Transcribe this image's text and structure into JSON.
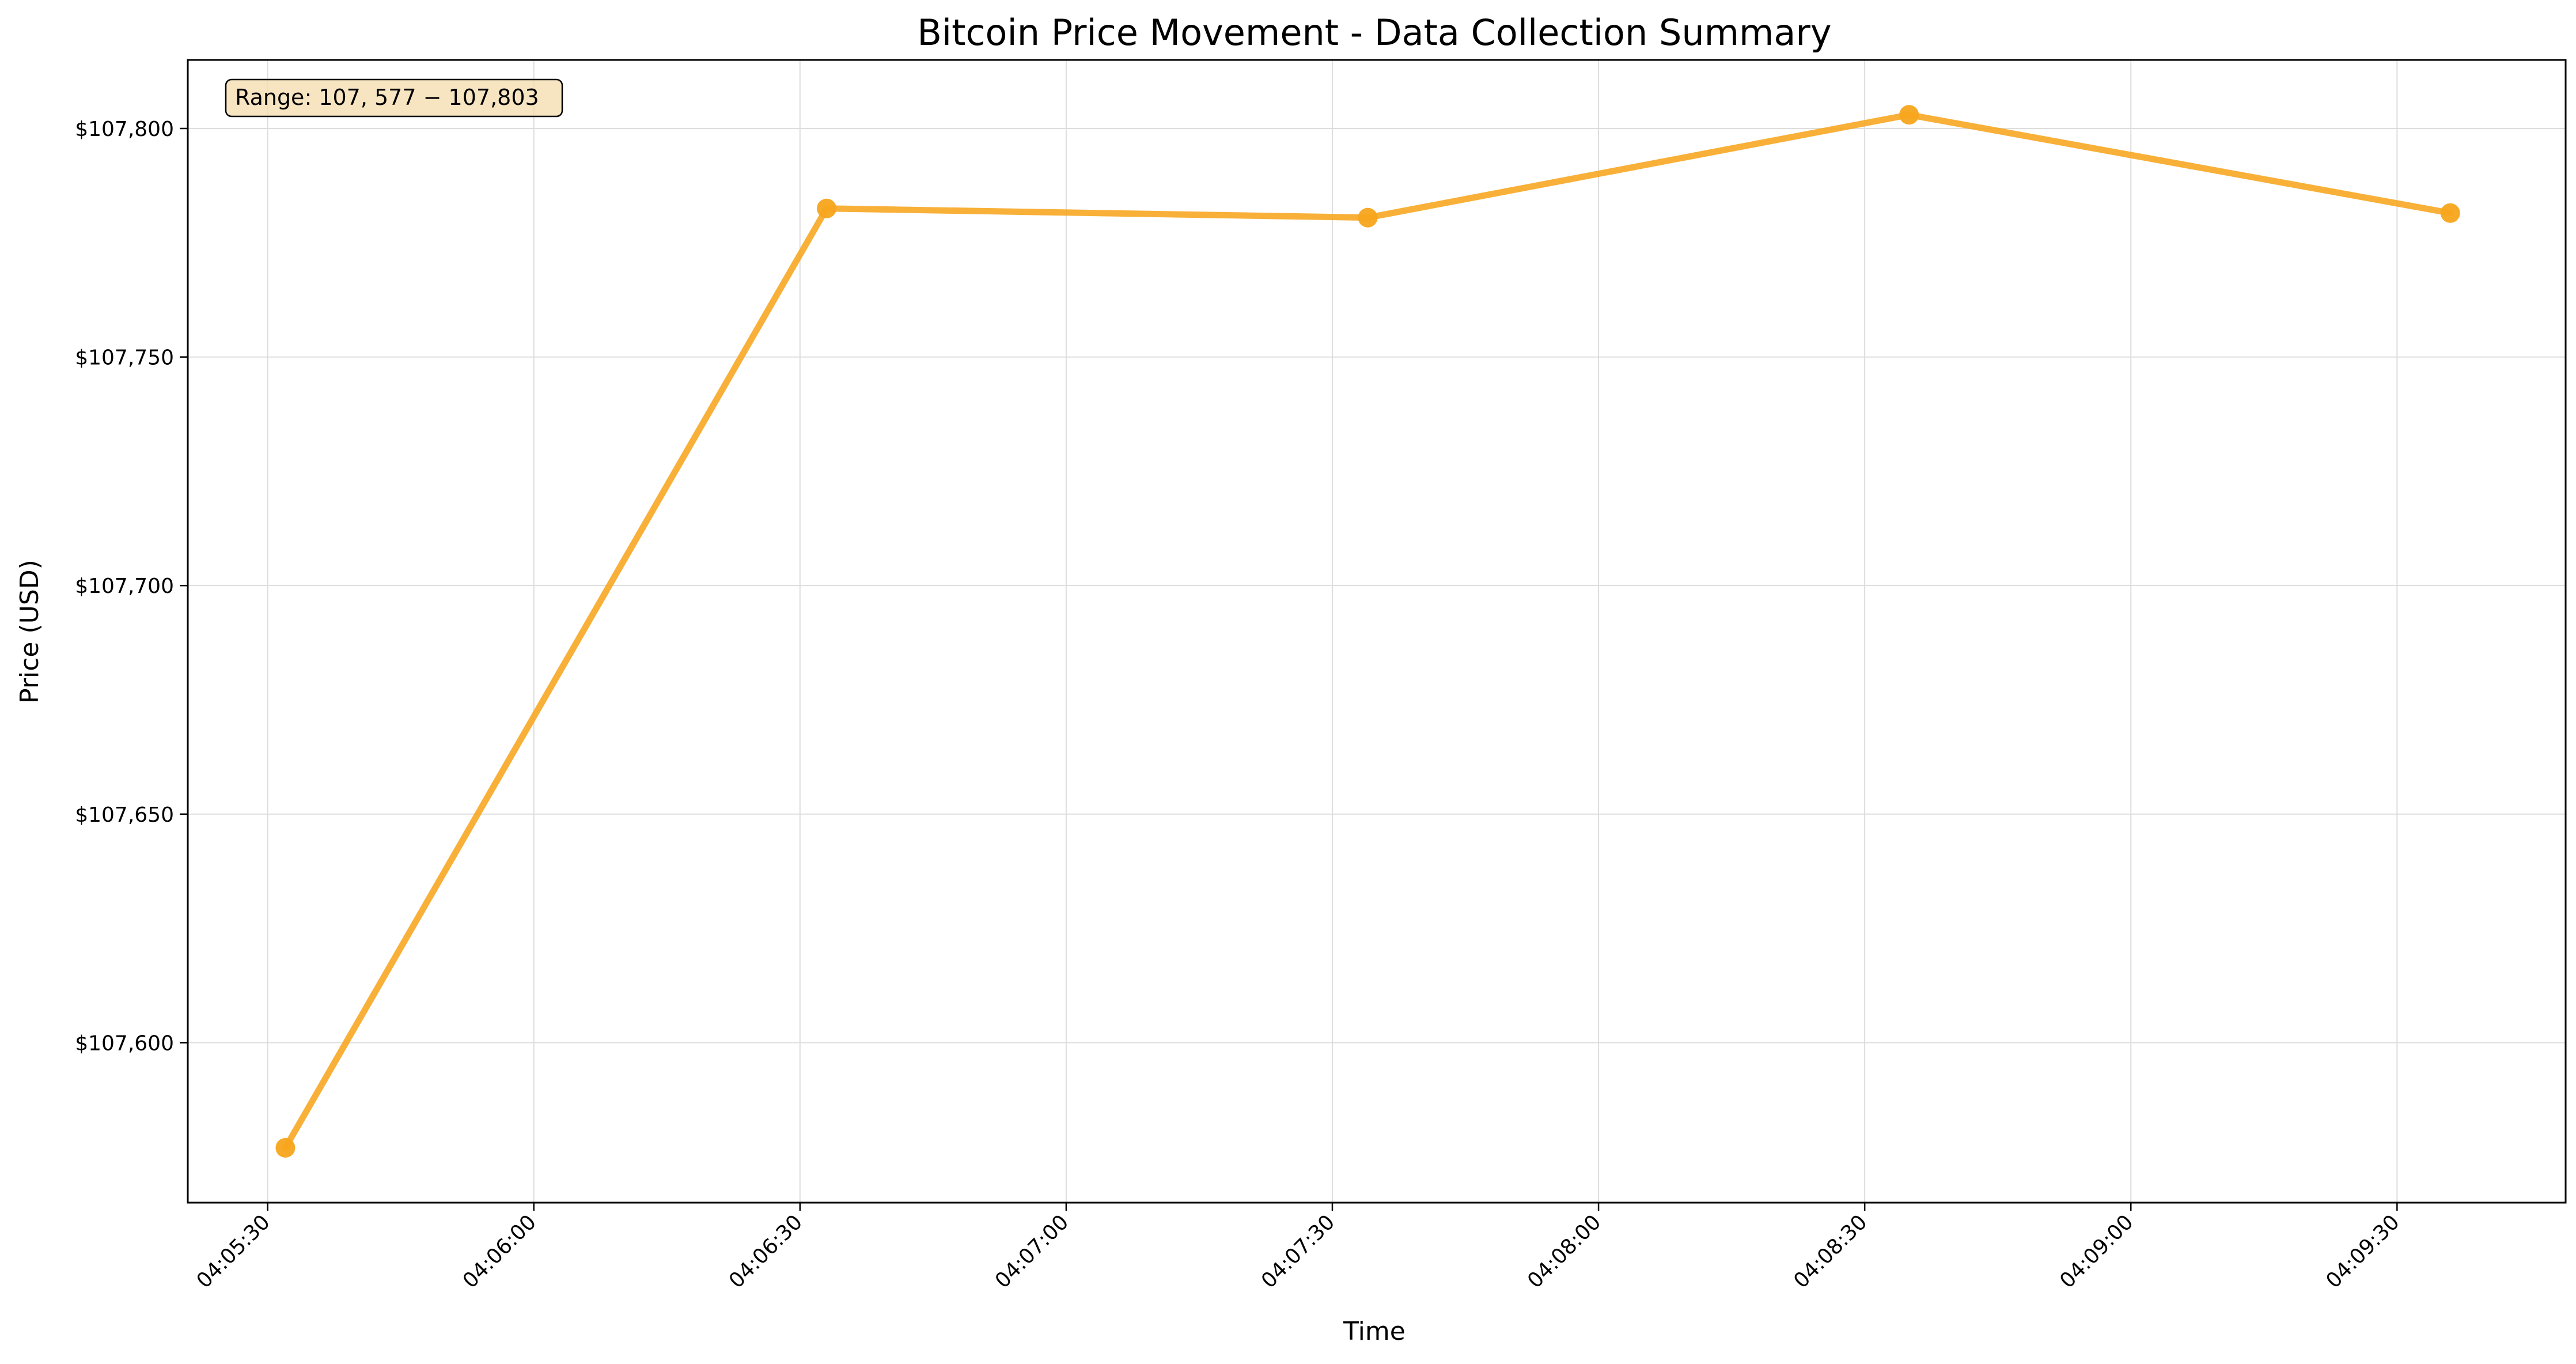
{
  "chart_data": {
    "type": "line",
    "title": "Bitcoin Price Movement - Data Collection Summary",
    "xlabel": "Time",
    "ylabel": "Price (USD)",
    "annotation": "Range: $107,577 - $107,803",
    "annotation_display": "Range: 107, 577 − 107,803",
    "x_tick_labels": [
      "04:05:30",
      "04:06:00",
      "04:06:30",
      "04:07:00",
      "04:07:30",
      "04:08:00",
      "04:08:30",
      "04:09:00",
      "04:09:30"
    ],
    "y_ticks": [
      107600,
      107650,
      107700,
      107750,
      107800
    ],
    "y_tick_labels": [
      "$107,600",
      "$107,650",
      "$107,700",
      "$107,750",
      "$107,800"
    ],
    "xlim": [
      "04:05:21",
      "04:09:49"
    ],
    "ylim": [
      107565,
      107815
    ],
    "grid": true,
    "series": [
      {
        "color": "#F7A51C",
        "marker": "circle",
        "x": [
          "04:05:32",
          "04:06:33",
          "04:07:34",
          "04:08:35",
          "04:09:36"
        ],
        "y": [
          107577,
          107782.5,
          107780.5,
          107803,
          107781.5
        ]
      }
    ]
  }
}
